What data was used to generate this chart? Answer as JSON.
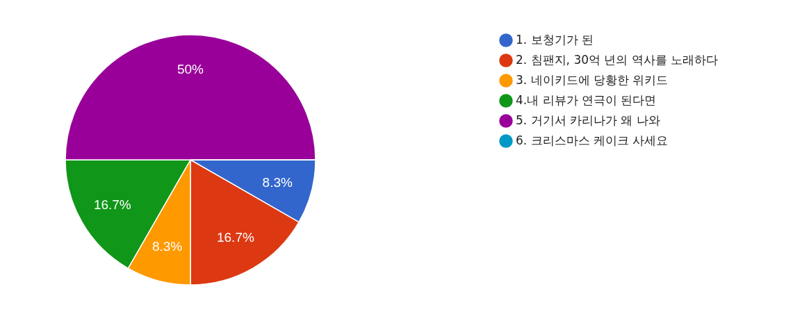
{
  "chart_data": {
    "type": "pie",
    "categories": [
      "1. 보청기가 된",
      "2. 침팬지, 30억 년의 역사를 노래하다",
      "3. 네이키드에 당황한 위키드",
      "4.내 리뷰가 연극이 된다면",
      "5. 거기서 카리나가 왜 나와",
      "6. 크리스마스 케이크 사세요"
    ],
    "values": [
      8.3,
      16.7,
      8.3,
      16.7,
      50,
      0
    ],
    "colors": [
      "#3366cc",
      "#dc3912",
      "#ff9900",
      "#109618",
      "#990099",
      "#0099c6"
    ],
    "value_labels": [
      "8.3%",
      "16.7%",
      "8.3%",
      "16.7%",
      "50%",
      null
    ],
    "legend": "right"
  }
}
